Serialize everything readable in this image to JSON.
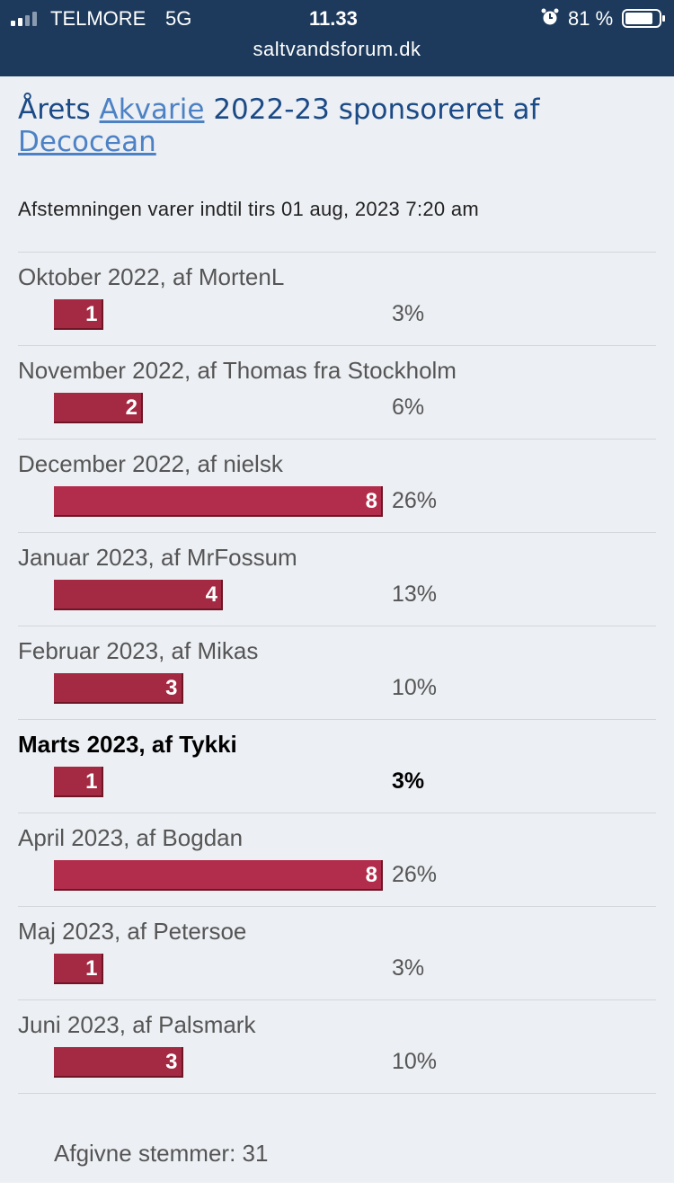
{
  "status_bar": {
    "carrier": "TELMORE",
    "network": "5G",
    "time": "11.33",
    "battery": "81 %"
  },
  "url": "saltvandsforum.dk",
  "poll": {
    "title": {
      "before": "Årets",
      "link1": "Akvarie",
      "middle": "2022-23 sponsoreret af",
      "link2": "Decocean"
    },
    "deadline": "Afstemningen varer indtil tirs 01 aug, 2023 7:20 am",
    "options": [
      {
        "label": "Oktober 2022, af MortenL",
        "votes": 1,
        "percent": "3%"
      },
      {
        "label": "November 2022, af Thomas fra Stockholm",
        "votes": 2,
        "percent": "6%"
      },
      {
        "label": "December 2022, af nielsk",
        "votes": 8,
        "percent": "26%"
      },
      {
        "label": "Januar 2023, af MrFossum",
        "votes": 4,
        "percent": "13%"
      },
      {
        "label": "Februar 2023, af Mikas",
        "votes": 3,
        "percent": "10%"
      },
      {
        "label": "Marts 2023, af Tykki",
        "votes": 1,
        "percent": "3%",
        "highlighted": true
      },
      {
        "label": "April 2023, af Bogdan",
        "votes": 8,
        "percent": "26%"
      },
      {
        "label": "Maj 2023, af Petersoe",
        "votes": 1,
        "percent": "3%"
      },
      {
        "label": "Juni 2023, af Palsmark",
        "votes": 3,
        "percent": "10%"
      }
    ],
    "total_label": "Afgivne stemmer:",
    "total": 31
  }
}
